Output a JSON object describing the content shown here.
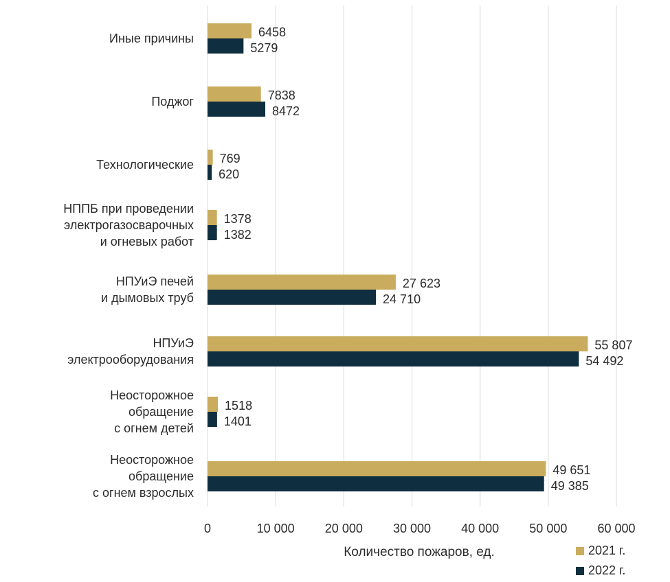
{
  "chart_data": {
    "type": "bar",
    "orientation": "horizontal",
    "categories": [
      [
        "Иные причины"
      ],
      [
        "Поджог"
      ],
      [
        "Технологические"
      ],
      [
        "НППБ при проведении",
        "электрогазосварочных",
        "и огневых работ"
      ],
      [
        "НПУиЭ печей",
        "и дымовых труб"
      ],
      [
        "НПУиЭ",
        "электрооборудования"
      ],
      [
        "Неосторожное",
        "обращение",
        "с огнем детей"
      ],
      [
        "Неосторожное",
        "обращение",
        "с огнем взрослых"
      ]
    ],
    "series": [
      {
        "name": "2021 г.",
        "color": "#c9ac5e",
        "values": [
          6458,
          7838,
          769,
          1378,
          27623,
          55807,
          1518,
          49651
        ],
        "value_labels": [
          "6458",
          "7838",
          "769",
          "1378",
          "27 623",
          "55 807",
          "1518",
          "49 651"
        ]
      },
      {
        "name": "2022 г.",
        "color": "#0f2e3f",
        "values": [
          5279,
          8472,
          620,
          1382,
          24710,
          54492,
          1401,
          49385
        ],
        "value_labels": [
          "5279",
          "8472",
          "620",
          "1382",
          "24 710",
          "54 492",
          "1401",
          "49 385"
        ]
      }
    ],
    "xlim": [
      0,
      60000
    ],
    "x_ticks": [
      0,
      10000,
      20000,
      30000,
      40000,
      50000,
      60000
    ],
    "x_tick_labels": [
      "0",
      "10 000",
      "20 000",
      "30 000",
      "40 000",
      "50 000",
      "60 000"
    ],
    "xlabel": "Количество пожаров, ед.",
    "grid": "vertical",
    "gridline_color": "#d9d9d9",
    "legend_position": "bottom-right"
  }
}
